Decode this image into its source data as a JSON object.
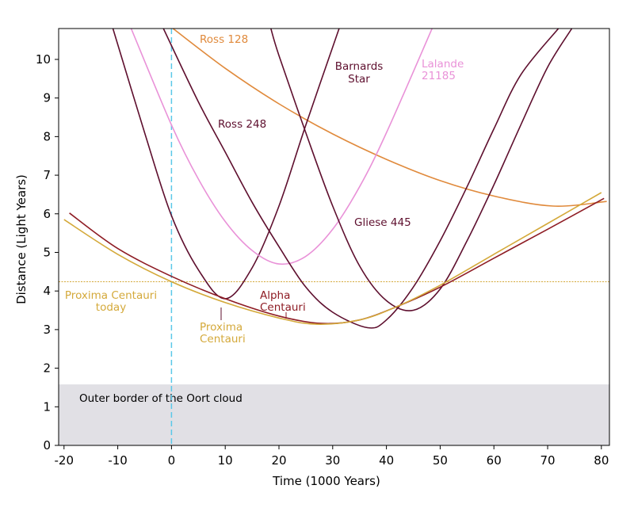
{
  "chart_data": {
    "type": "line",
    "title": "",
    "xlabel": "Time (1000 Years)",
    "ylabel": "Distance (Light Years)",
    "xlim": [
      -21,
      81.5
    ],
    "ylim": [
      0,
      10.8
    ],
    "xticks": [
      -20,
      -10,
      0,
      10,
      20,
      30,
      40,
      50,
      60,
      70,
      80
    ],
    "xtick_labels": [
      "-20",
      "-10",
      "0",
      "10",
      "20",
      "30",
      "40",
      "50",
      "60",
      "70",
      "80"
    ],
    "yticks": [
      0,
      1,
      2,
      3,
      4,
      5,
      6,
      7,
      8,
      9,
      10
    ],
    "ytick_labels": [
      "0",
      "1",
      "2",
      "3",
      "4",
      "5",
      "6",
      "7",
      "8",
      "9",
      "10"
    ],
    "grid": false,
    "oort_region": {
      "y_max": 1.58,
      "label": "Outer border of the Oort cloud",
      "color": "#e1e0e5"
    },
    "now_line": {
      "x": 0,
      "color": "#5bc8e8"
    },
    "reference_line": {
      "y": 4.24,
      "color": "#d4a93a",
      "label_lines": [
        "Proxima Centauri",
        "today"
      ]
    },
    "series": [
      {
        "name": "Ross 128",
        "color": "#e08a3c",
        "label_lines": [
          "Ross 128"
        ],
        "x": [
          0,
          10,
          20,
          30,
          40,
          50,
          60,
          71,
          81
        ],
        "y": [
          10.83,
          9.77,
          8.85,
          8.07,
          7.41,
          6.86,
          6.46,
          6.2,
          6.32
        ]
      },
      {
        "name": "Barnards Star",
        "color": "#5e0f2e",
        "label_lines": [
          "Barnards",
          "Star"
        ],
        "x": [
          -10.9,
          -5,
          0,
          5,
          10,
          15,
          20,
          25,
          31.2
        ],
        "y": [
          10.8,
          8.1,
          5.95,
          4.55,
          3.8,
          4.6,
          6.2,
          8.3,
          10.8
        ]
      },
      {
        "name": "Lalande 21185",
        "color": "#e992d8",
        "label_lines": [
          "Lalande",
          "21185"
        ],
        "x": [
          -7.5,
          0,
          5,
          10,
          15,
          20,
          25,
          30,
          35,
          40,
          48.5
        ],
        "y": [
          10.8,
          8.3,
          6.9,
          5.8,
          5.05,
          4.7,
          4.9,
          5.6,
          6.7,
          8.1,
          10.8
        ]
      },
      {
        "name": "Ross 248",
        "color": "#5e0f2e",
        "label_lines": [
          "Ross 248"
        ],
        "x": [
          -1.5,
          5,
          10,
          15,
          20,
          25,
          30,
          36.5,
          40,
          45,
          50,
          55,
          60,
          65,
          72
        ],
        "y": [
          10.8,
          8.9,
          7.6,
          6.3,
          5.15,
          4.1,
          3.45,
          3.05,
          3.25,
          4.1,
          5.3,
          6.7,
          8.2,
          9.6,
          10.8
        ]
      },
      {
        "name": "Gliese 445",
        "color": "#5e0f2e",
        "label_lines": [
          "Gliese 445"
        ],
        "x": [
          18.5,
          20,
          25,
          30,
          35,
          40,
          45,
          50,
          55,
          60,
          65,
          70,
          74.5
        ],
        "y": [
          10.8,
          10.1,
          8.1,
          6.2,
          4.65,
          3.75,
          3.5,
          4.05,
          5.3,
          6.75,
          8.3,
          9.8,
          10.8
        ]
      },
      {
        "name": "Alpha Centauri",
        "color": "#8e1c24",
        "label_lines": [
          "Alpha",
          "Centauri"
        ],
        "x": [
          -19,
          -10,
          0,
          10,
          20,
          28,
          35,
          42,
          50,
          60,
          70,
          80.5
        ],
        "y": [
          6.02,
          5.1,
          4.38,
          3.8,
          3.35,
          3.16,
          3.25,
          3.6,
          4.1,
          4.85,
          5.6,
          6.4
        ]
      },
      {
        "name": "Proxima Centauri",
        "color": "#d4a93a",
        "label_lines": [
          "Proxima",
          "Centauri"
        ],
        "x": [
          -20,
          -10,
          0,
          10,
          20,
          27,
          35,
          42,
          50,
          60,
          70,
          80
        ],
        "y": [
          5.85,
          4.95,
          4.24,
          3.7,
          3.3,
          3.14,
          3.25,
          3.6,
          4.15,
          4.95,
          5.75,
          6.55
        ]
      }
    ]
  }
}
